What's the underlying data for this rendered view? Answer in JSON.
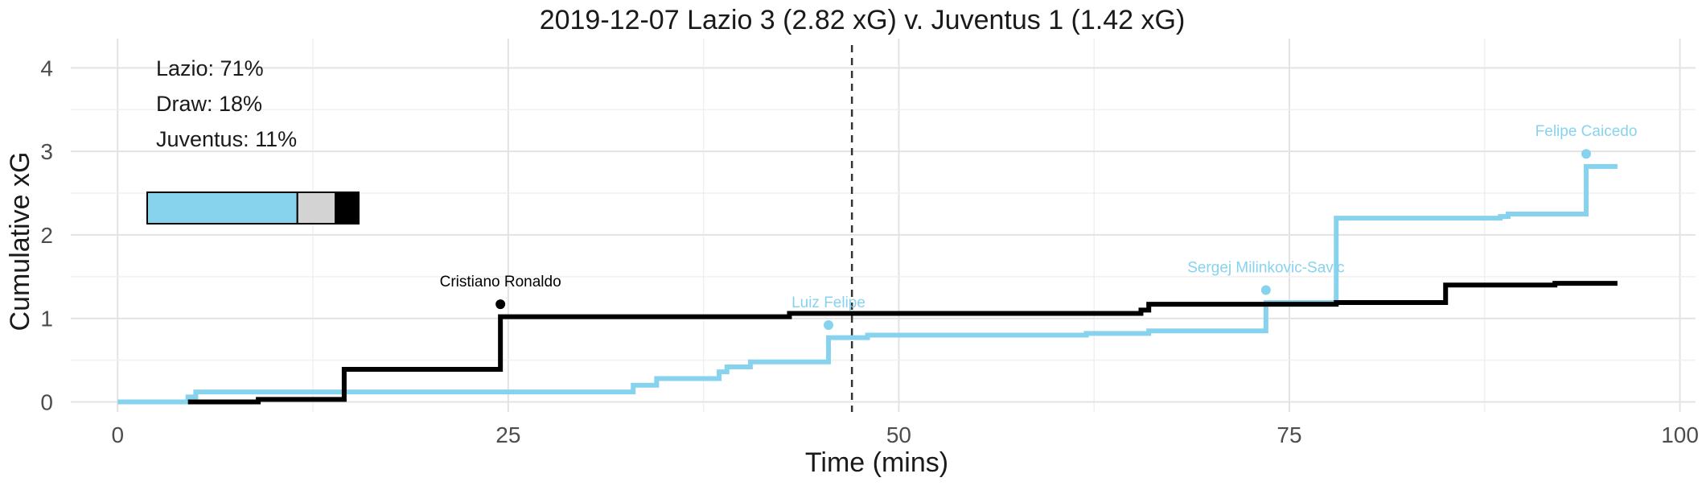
{
  "chart_data": {
    "type": "line",
    "title": "2019-12-07 Lazio 3 (2.82 xG) v. Juventus 1 (1.42 xG)",
    "xlabel": "Time (mins)",
    "ylabel": "Cumulative xG",
    "xlim": [
      -3,
      101
    ],
    "ylim": [
      -0.12,
      4.35
    ],
    "xticks": [
      "0",
      "25",
      "50",
      "75",
      "100"
    ],
    "yticks": [
      "0",
      "1",
      "2",
      "3",
      "4"
    ],
    "halftime_line_x": 47,
    "grid": true,
    "colors": {
      "Lazio": "#87d3ee",
      "Juventus": "#000000",
      "draw": "#d3d3d3"
    },
    "probabilities": [
      {
        "label": "Lazio: 71%",
        "team": "Lazio",
        "value": 0.71
      },
      {
        "label": "Draw: 18%",
        "team": "Draw",
        "value": 0.18
      },
      {
        "label": "Juventus: 11%",
        "team": "Juventus",
        "value": 0.11
      }
    ],
    "series": [
      {
        "team": "Lazio",
        "color": "#87d3ee",
        "steps": [
          [
            0,
            0
          ],
          [
            4.5,
            0.06
          ],
          [
            5,
            0.12
          ],
          [
            33,
            0.2
          ],
          [
            34.5,
            0.28
          ],
          [
            38.5,
            0.36
          ],
          [
            39,
            0.42
          ],
          [
            40.5,
            0.48
          ],
          [
            45.5,
            0.77
          ],
          [
            48,
            0.8
          ],
          [
            62,
            0.82
          ],
          [
            66,
            0.85
          ],
          [
            73.5,
            1.19
          ],
          [
            78,
            2.2
          ],
          [
            88.5,
            2.22
          ],
          [
            89,
            2.25
          ],
          [
            94,
            2.82
          ],
          [
            96,
            2.82
          ]
        ]
      },
      {
        "team": "Juventus",
        "color": "#000000",
        "steps": [
          [
            4.5,
            0
          ],
          [
            9,
            0.03
          ],
          [
            14.5,
            0.39
          ],
          [
            24.5,
            1.02
          ],
          [
            43,
            1.06
          ],
          [
            65.5,
            1.1
          ],
          [
            66,
            1.17
          ],
          [
            78,
            1.19
          ],
          [
            85,
            1.4
          ],
          [
            92,
            1.42
          ],
          [
            96,
            1.42
          ]
        ]
      }
    ],
    "goals": [
      {
        "player": "Cristiano Ronaldo",
        "team": "Juventus",
        "minute": 24.5,
        "xg": 1.17,
        "color": "#000000"
      },
      {
        "player": "Luiz Felipe",
        "team": "Lazio",
        "minute": 45.5,
        "xg": 0.92,
        "color": "#87d3ee"
      },
      {
        "player": "Sergej Milinkovic-Savic",
        "team": "Lazio",
        "minute": 73.5,
        "xg": 1.34,
        "color": "#87d3ee"
      },
      {
        "player": "Felipe Caicedo",
        "team": "Lazio",
        "minute": 94,
        "xg": 2.97,
        "color": "#87d3ee"
      }
    ]
  }
}
